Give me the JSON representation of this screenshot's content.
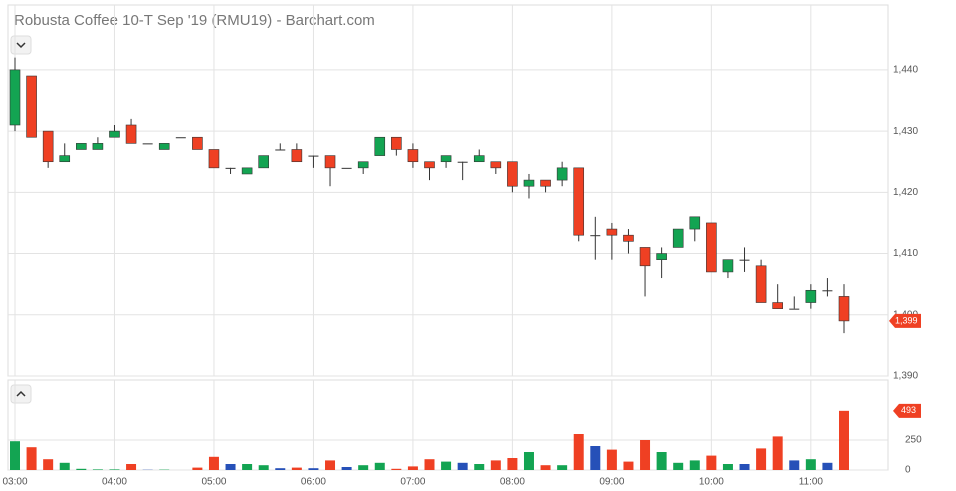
{
  "chart_data": {
    "type": "candlestick",
    "title": "Robusta Coffee 10-T Sep '19 (RMU19) - Barchart.com",
    "categories": [
      "03:00",
      null,
      null,
      null,
      null,
      null,
      "04:00",
      null,
      null,
      null,
      null,
      null,
      "05:00",
      null,
      null,
      null,
      null,
      null,
      "06:00",
      null,
      null,
      null,
      null,
      null,
      "07:00",
      null,
      null,
      null,
      null,
      null,
      "08:00",
      null,
      null,
      null,
      null,
      null,
      "09:00",
      null,
      null,
      null,
      null,
      null,
      "10:00",
      null,
      null,
      null,
      null,
      null,
      "11:00",
      null,
      null
    ],
    "open": [
      1431,
      1439,
      1430,
      1425,
      1427,
      1427,
      1429,
      1431,
      1428,
      1427,
      1429,
      1429,
      1427,
      1424,
      1423,
      1424,
      1427,
      1427,
      1426,
      1426,
      1424,
      1424,
      1426,
      1429,
      1427,
      1425,
      1425,
      1425,
      1425,
      1425,
      1425,
      1421,
      1422,
      1422,
      1424,
      1413,
      1414,
      1413,
      1411,
      1409,
      1411,
      1414,
      1415,
      1407,
      1409,
      1408,
      1402,
      1401,
      1402,
      1404,
      1403
    ],
    "high": [
      1442,
      1439,
      1430,
      1428,
      1428,
      1429,
      1431,
      1432,
      1428,
      1428,
      1429,
      1429,
      1427,
      1424,
      1424,
      1426,
      1428,
      1428,
      1426,
      1426,
      1424,
      1425,
      1429,
      1429,
      1428,
      1425,
      1426,
      1425,
      1427,
      1425,
      1425,
      1423,
      1422,
      1425,
      1424,
      1416,
      1415,
      1414,
      1411,
      1411,
      1414,
      1416,
      1415,
      1409,
      1411,
      1409,
      1405,
      1403,
      1405,
      1406,
      1405
    ],
    "low": [
      1430,
      1429,
      1424,
      1425,
      1427,
      1427,
      1429,
      1428,
      1428,
      1427,
      1429,
      1427,
      1424,
      1423,
      1423,
      1424,
      1427,
      1425,
      1424,
      1421,
      1424,
      1423,
      1426,
      1426,
      1424,
      1422,
      1424,
      1422,
      1425,
      1423,
      1420,
      1419,
      1420,
      1421,
      1412,
      1409,
      1409,
      1410,
      1403,
      1406,
      1411,
      1412,
      1407,
      1406,
      1407,
      1402,
      1401,
      1401,
      1401,
      1403,
      1397
    ],
    "close": [
      1440,
      1429,
      1425,
      1426,
      1428,
      1428,
      1430,
      1428,
      1428,
      1428,
      1429,
      1427,
      1424,
      1424,
      1424,
      1426,
      1427,
      1425,
      1426,
      1424,
      1424,
      1425,
      1429,
      1427,
      1425,
      1424,
      1426,
      1425,
      1426,
      1424,
      1421,
      1422,
      1421,
      1424,
      1413,
      1413,
      1413,
      1412,
      1408,
      1410,
      1414,
      1416,
      1407,
      1409,
      1409,
      1402,
      1401,
      1401,
      1404,
      1404,
      1399
    ],
    "volume": [
      240,
      190,
      90,
      60,
      10,
      5,
      5,
      50,
      2,
      3,
      0,
      20,
      110,
      50,
      50,
      40,
      15,
      20,
      15,
      80,
      25,
      40,
      60,
      10,
      30,
      90,
      70,
      60,
      50,
      80,
      100,
      150,
      40,
      40,
      300,
      200,
      170,
      70,
      250,
      150,
      60,
      80,
      120,
      50,
      50,
      180,
      280,
      80,
      90,
      60,
      493
    ],
    "up_color": "#13a452",
    "down_color": "#ef4023",
    "unchanged_color": "#2650b8",
    "doji_color": "#333333",
    "ylim": [
      1390,
      1450.6
    ],
    "yticks": [
      {
        "value": 1390,
        "label": "1,390"
      },
      {
        "value": 1400,
        "label": "1,400"
      },
      {
        "value": 1410,
        "label": "1,410"
      },
      {
        "value": 1420,
        "label": "1,420"
      },
      {
        "value": 1430,
        "label": "1,430"
      },
      {
        "value": 1440,
        "label": "1,440"
      }
    ],
    "volume_ylim": [
      0,
      750
    ],
    "volume_yticks": [
      0,
      250
    ],
    "last_label": {
      "value": 1399,
      "label": "1,399"
    },
    "grid": true
  }
}
